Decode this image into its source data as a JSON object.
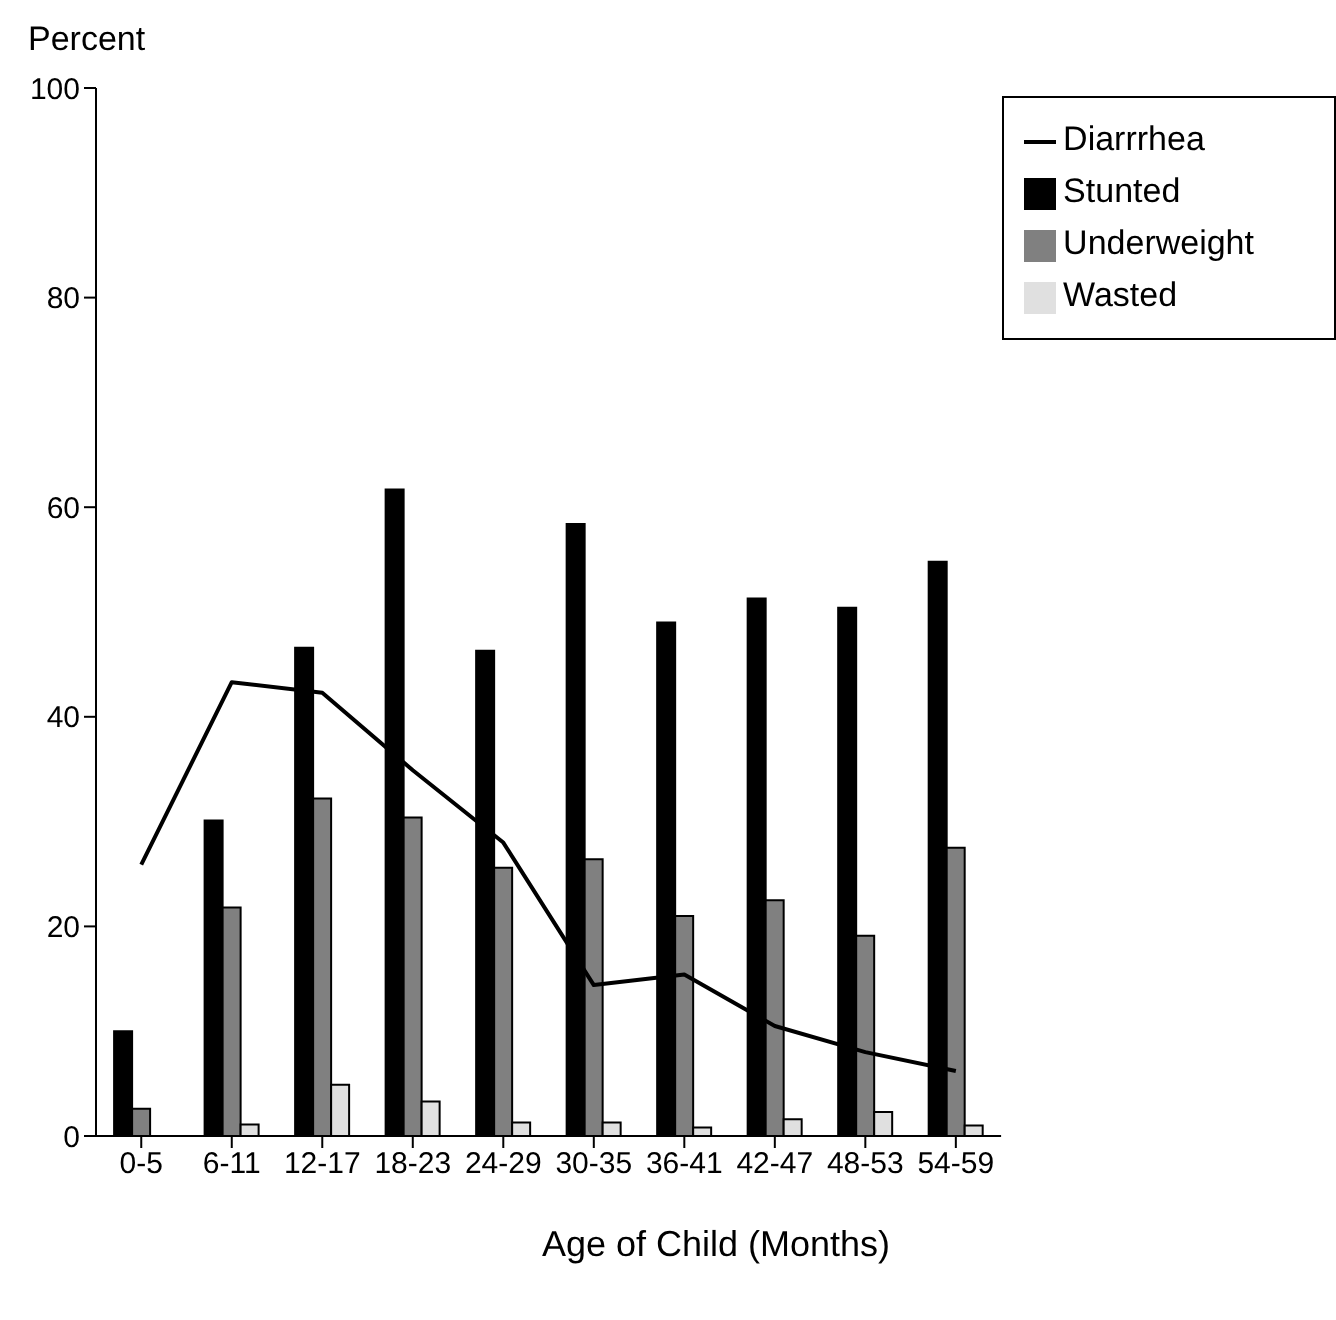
{
  "chart_data": {
    "type": "bar",
    "xlabel": "Age of Child (Months)",
    "ylabel": "Percent",
    "categories": [
      "0-5",
      "6-11",
      "12-17",
      "18-23",
      "24-29",
      "30-35",
      "36-41",
      "42-47",
      "48-53",
      "54-59"
    ],
    "series": [
      {
        "name": "Diarrrhea",
        "type": "line",
        "color": "#000000",
        "values": [
          25.9,
          43.3,
          42.3,
          34.9,
          28.0,
          14.4,
          15.4,
          10.5,
          8.0,
          6.2
        ]
      },
      {
        "name": "Stunted",
        "color": "#000000",
        "values": [
          10.0,
          30.1,
          46.6,
          61.7,
          46.3,
          58.4,
          49.0,
          51.3,
          50.4,
          54.8
        ]
      },
      {
        "name": "Underweight",
        "color": "#808080",
        "values": [
          2.6,
          21.8,
          32.2,
          30.4,
          25.6,
          26.4,
          21.0,
          22.5,
          19.1,
          27.5
        ]
      },
      {
        "name": "Wasted",
        "color": "#e0e0e0",
        "values": [
          0,
          1.1,
          4.9,
          3.3,
          1.3,
          1.3,
          0.8,
          1.6,
          2.3,
          1.0
        ]
      }
    ],
    "ylim": [
      0,
      100
    ],
    "yticks": [
      0,
      20,
      40,
      60,
      80,
      100
    ],
    "grid": false,
    "legend": "top right",
    "marker": "none",
    "line_style": "solid"
  }
}
